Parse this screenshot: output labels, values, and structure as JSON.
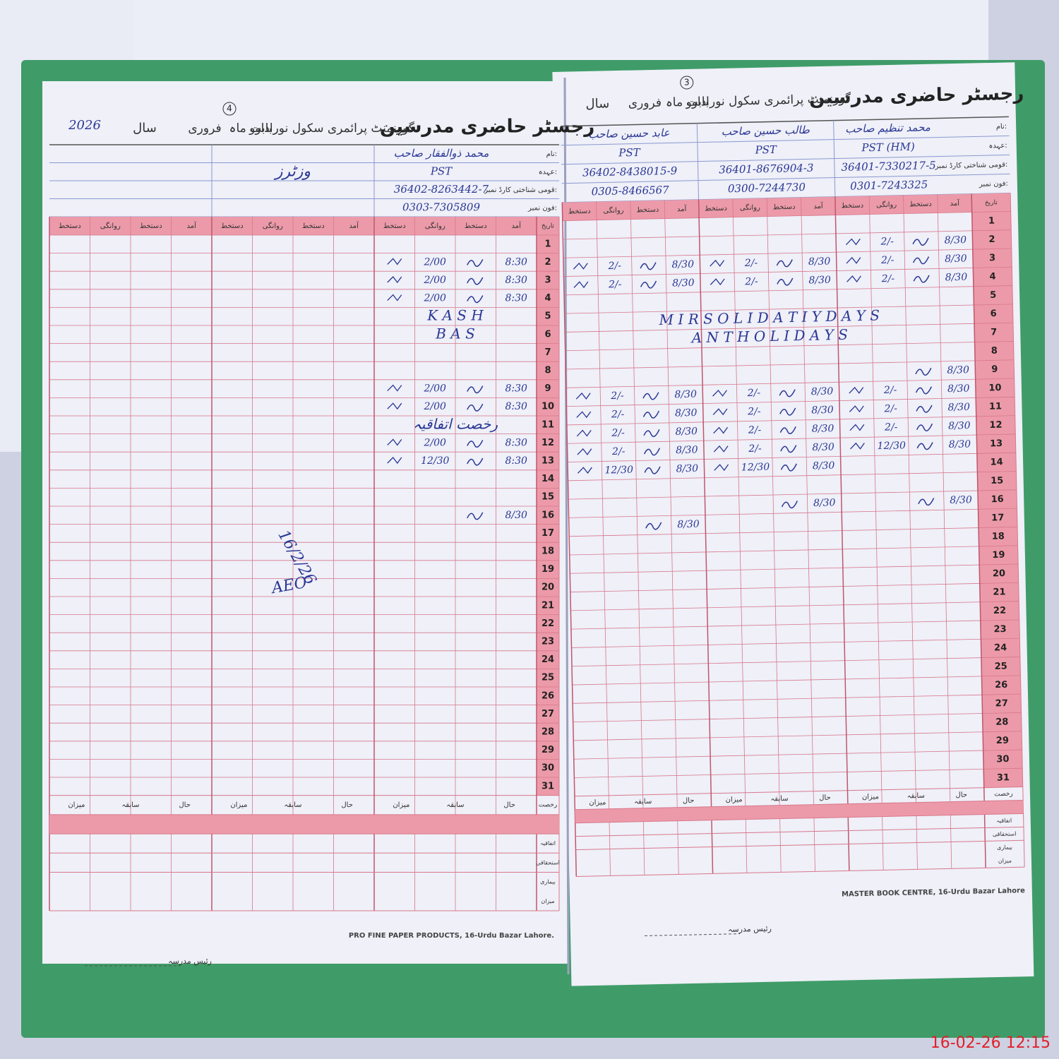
{
  "timestamp": "16-02-26 12:15",
  "days": [
    1,
    2,
    3,
    4,
    5,
    6,
    7,
    8,
    9,
    10,
    11,
    12,
    13,
    14,
    15,
    16,
    17,
    18,
    19,
    20,
    21,
    22,
    23,
    24,
    25,
    26,
    27,
    28,
    29,
    30,
    31
  ],
  "form_labels": {
    "name": "نام:",
    "designation": "عہدہ:",
    "cnic": "قومی شناختی کارڈ نمبر:",
    "phone": "فون نمبر:",
    "date": "تاریخ",
    "arrival": "آمد",
    "sign": "دستخط",
    "departure": "روانگی",
    "leave": "رخصت",
    "casual": "اتفاقیہ",
    "earned": "استحقاقی",
    "sick": "بیماری",
    "total": "میزان",
    "previous": "سابقہ",
    "current": "حال"
  },
  "left_page": {
    "page_no": "4",
    "title": "رجسٹر حاضری مدرسین",
    "school": "گورنمنٹ پرائمری سکول نوراداوو",
    "month_label": "بابت ماہ",
    "month": "فروری",
    "year_label": "سال",
    "year": "2026",
    "visitors_label": "وزٹرز",
    "teachers": [
      {
        "name": "محمد ذوالفقار صاحب",
        "designation": "PST",
        "cnic": "36402-8263442-7",
        "phone": "0303-7305809",
        "attendance": [
          {
            "day": 2,
            "arrival": "8:30",
            "departure": "2/00"
          },
          {
            "day": 3,
            "arrival": "8:30",
            "departure": "2/00"
          },
          {
            "day": 4,
            "arrival": "8:30",
            "departure": "2/00"
          },
          {
            "day": 9,
            "arrival": "8:30",
            "departure": "2/00"
          },
          {
            "day": 10,
            "arrival": "8:30",
            "departure": "2/00"
          },
          {
            "day": 12,
            "arrival": "8:30",
            "departure": "2/00"
          },
          {
            "day": 13,
            "arrival": "8:30",
            "departure": "12/30"
          },
          {
            "day": 16,
            "arrival": "8/30",
            "departure": null
          }
        ]
      }
    ],
    "remarks": [
      {
        "day": 5,
        "text": "K A S H"
      },
      {
        "day": 6,
        "text": "B A S"
      },
      {
        "day": 11,
        "text": "رخصت اتفاقیہ"
      }
    ],
    "visitor_notes": [
      "16/2/26",
      "AEO"
    ],
    "footer": "PRO FINE PAPER PRODUCTS, 16-Urdu Bazar Lahore.",
    "principal": "رئیس مدرسہ"
  },
  "right_page": {
    "page_no": "3",
    "title": "رجسٹر حاضری مدرسین",
    "school": "گورنمنٹ پرائمری سکول نوراداوو",
    "month_label": "بابت ماہ",
    "month": "فروری",
    "year_label": "سال",
    "teachers": [
      {
        "name": "محمد تنظیم صاحب",
        "designation": "PST (HM)",
        "cnic": "36401-7330217-5",
        "phone": "0301-7243325",
        "attendance": [
          {
            "day": 2,
            "arrival": "8/30",
            "departure": "2/-"
          },
          {
            "day": 3,
            "arrival": "8/30",
            "departure": "2/-"
          },
          {
            "day": 4,
            "arrival": "8/30",
            "departure": "2/-"
          },
          {
            "day": 9,
            "arrival": "8/30",
            "departure": null
          },
          {
            "day": 10,
            "arrival": "8/30",
            "departure": "2/-"
          },
          {
            "day": 11,
            "arrival": "8/30",
            "departure": "2/-"
          },
          {
            "day": 12,
            "arrival": "8/30",
            "departure": "2/-"
          },
          {
            "day": 13,
            "arrival": "8/30",
            "departure": "12/30"
          },
          {
            "day": 16,
            "arrival": "8/30",
            "departure": null
          }
        ]
      },
      {
        "name": "طالب حسین صاحب",
        "designation": "PST",
        "cnic": "36401-8676904-3",
        "phone": "0300-7244730",
        "attendance": [
          {
            "day": 3,
            "arrival": "8/30",
            "departure": "2/-"
          },
          {
            "day": 4,
            "arrival": "8/30",
            "departure": "2/-"
          },
          {
            "day": 10,
            "arrival": "8/30",
            "departure": "2/-"
          },
          {
            "day": 11,
            "arrival": "8/30",
            "departure": "2/-"
          },
          {
            "day": 12,
            "arrival": "8/30",
            "departure": "2/-"
          },
          {
            "day": 13,
            "arrival": "8/30",
            "departure": "2/-"
          },
          {
            "day": 14,
            "arrival": "8/30",
            "departure": "12/30"
          },
          {
            "day": 16,
            "arrival": "8/30",
            "departure": null
          }
        ]
      },
      {
        "name": "عابد حسین صاحب",
        "designation": "PST",
        "cnic": "36402-8438015-9",
        "phone": "0305-8466567",
        "attendance": [
          {
            "day": 3,
            "arrival": "8/30",
            "departure": "2/-"
          },
          {
            "day": 4,
            "arrival": "8/30",
            "departure": "2/-"
          },
          {
            "day": 10,
            "arrival": "8/30",
            "departure": "2/-"
          },
          {
            "day": 11,
            "arrival": "8/30",
            "departure": "2/-"
          },
          {
            "day": 12,
            "arrival": "8/30",
            "departure": "2/-"
          },
          {
            "day": 13,
            "arrival": "8/30",
            "departure": "2/-"
          },
          {
            "day": 14,
            "arrival": "8/30",
            "departure": "12/30"
          },
          {
            "day": 17,
            "arrival": "8/30",
            "departure": null
          }
        ]
      }
    ],
    "remarks": [
      {
        "day": 6,
        "text": "M I R   S O L I D A T I Y   D A Y S"
      },
      {
        "day": 7,
        "text": "A N T   H O L I D A Y S"
      }
    ],
    "footer": "MASTER BOOK CENTRE, 16-Urdu Bazar Lahore",
    "principal": "رئیس مدرسہ"
  }
}
